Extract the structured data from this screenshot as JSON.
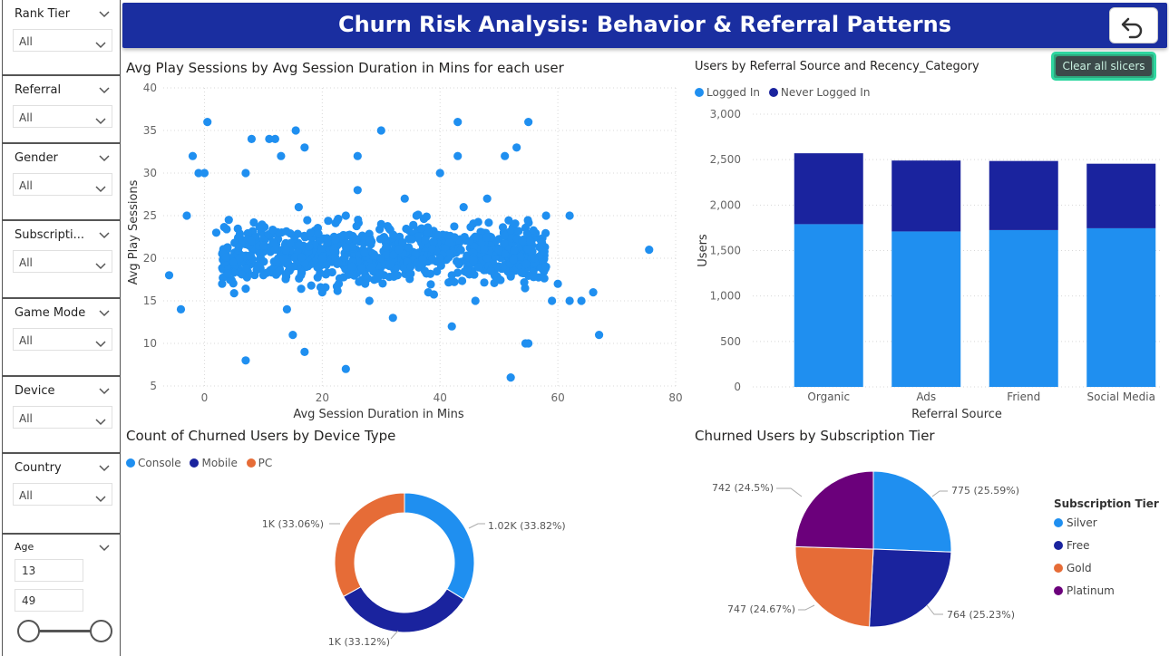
{
  "header": {
    "title": "Churn Risk Analysis: Behavior & Referral Patterns",
    "back_icon": "undo-arrow-icon"
  },
  "clear_slicers_label": "Clear all slicers",
  "slicers": [
    {
      "title": "Rank Tier",
      "value": "All"
    },
    {
      "title": "Referral",
      "value": "All"
    },
    {
      "title": "Gender",
      "value": "All"
    },
    {
      "title": "Subscripti...",
      "value": "All"
    },
    {
      "title": "Game Mode",
      "value": "All"
    },
    {
      "title": "Device",
      "value": "All"
    },
    {
      "title": "Country",
      "value": "All"
    }
  ],
  "age_slicer": {
    "title": "Age",
    "min_value": "13",
    "max_value": "49"
  },
  "colors": {
    "light_blue": "#1f8ff0",
    "dark_blue": "#1a239e",
    "orange": "#e66c37",
    "purple": "#6b007b",
    "header": "#1a2ea0"
  },
  "scatter": {
    "title": "Avg Play Sessions by Avg Session Duration in Mins for each user",
    "xlabel": "Avg Session Duration in Mins",
    "ylabel": "Avg Play Sessions",
    "x_ticks": [
      "0",
      "20",
      "40",
      "60",
      "80"
    ],
    "y_ticks": [
      "5",
      "10",
      "15",
      "20",
      "25",
      "30",
      "35",
      "40"
    ]
  },
  "bar": {
    "title": "Users by Referral Source and Recency_Category",
    "xlabel": "Referral Source",
    "ylabel": "Users",
    "legend": [
      "Logged In",
      "Never Logged In"
    ],
    "y_ticks": [
      "0",
      "500",
      "1,000",
      "1,500",
      "2,000",
      "2,500",
      "3,000"
    ]
  },
  "donut": {
    "title": "Count of Churned Users by Device Type",
    "legend": [
      "Console",
      "Mobile",
      "PC"
    ],
    "labels": [
      "1.02K (33.82%)",
      "1K (33.12%)",
      "1K (33.06%)"
    ]
  },
  "pie": {
    "title": "Churned Users by Subscription Tier",
    "legend_title": "Subscription Tier",
    "legend": [
      "Silver",
      "Free",
      "Gold",
      "Platinum"
    ],
    "labels": [
      "775 (25.59%)",
      "764 (25.23%)",
      "747 (24.67%)",
      "742 (24.5%)"
    ]
  },
  "chart_data": [
    {
      "type": "scatter",
      "title": "Avg Play Sessions by Avg Session Duration in Mins for each user",
      "xlabel": "Avg Session Duration in Mins",
      "ylabel": "Avg Play Sessions",
      "xlim": [
        -7,
        80
      ],
      "ylim": [
        5,
        40
      ],
      "grid": true,
      "series": [
        {
          "points": [
            [
              0.5,
              36
            ],
            [
              43,
              36
            ],
            [
              55,
              36
            ],
            [
              15.5,
              35
            ],
            [
              30,
              35
            ],
            [
              8,
              34
            ],
            [
              11,
              34
            ],
            [
              12,
              34
            ],
            [
              17,
              33
            ],
            [
              53,
              33
            ],
            [
              -2,
              32
            ],
            [
              13,
              32
            ],
            [
              26,
              32
            ],
            [
              43,
              32
            ],
            [
              51,
              32
            ],
            [
              -1,
              30
            ],
            [
              0,
              30
            ],
            [
              7,
              30
            ],
            [
              40,
              30
            ],
            [
              58,
              25
            ],
            [
              62,
              25
            ],
            [
              75.5,
              21
            ],
            [
              -6,
              18
            ],
            [
              -4,
              14
            ],
            [
              -3,
              25
            ],
            [
              59,
              15
            ],
            [
              62,
              15
            ],
            [
              64,
              15
            ],
            [
              66,
              16
            ],
            [
              67,
              11
            ],
            [
              7,
              8
            ],
            [
              24,
              7
            ],
            [
              52,
              6
            ],
            [
              54.5,
              10
            ],
            [
              55,
              10
            ],
            [
              17,
              9
            ],
            [
              15,
              11
            ],
            [
              3,
              17
            ],
            [
              2,
              23
            ],
            [
              58,
              19
            ],
            [
              60,
              17
            ],
            [
              20,
              20
            ],
            [
              22,
              21
            ],
            [
              25,
              19
            ],
            [
              28,
              22
            ],
            [
              30,
              20
            ],
            [
              33,
              21
            ],
            [
              35,
              19
            ],
            [
              38,
              23
            ],
            [
              40,
              20
            ],
            [
              42,
              18
            ],
            [
              45,
              22
            ],
            [
              48,
              20
            ],
            [
              12,
              21
            ],
            [
              15,
              19
            ],
            [
              18,
              23
            ],
            [
              10,
              18
            ],
            [
              8,
              22
            ],
            [
              6,
              20
            ],
            [
              50,
              21
            ],
            [
              52,
              18
            ],
            [
              54,
              22
            ],
            [
              56,
              20
            ],
            [
              24,
              25
            ],
            [
              30,
              24
            ],
            [
              36,
              25
            ],
            [
              44,
              26
            ],
            [
              20,
              16
            ],
            [
              28,
              15
            ],
            [
              38,
              16
            ],
            [
              46,
              15
            ],
            [
              14,
              14
            ],
            [
              32,
              13
            ],
            [
              42,
              12
            ],
            [
              26,
              28
            ],
            [
              34,
              27
            ],
            [
              16,
              26
            ],
            [
              48,
              27
            ]
          ]
        }
      ]
    },
    {
      "type": "bar",
      "title": "Users by Referral Source and Recency_Category",
      "xlabel": "Referral Source",
      "ylabel": "Users",
      "categories": [
        "Organic",
        "Ads",
        "Friend",
        "Social Media"
      ],
      "ylim": [
        0,
        3000
      ],
      "stacked": true,
      "legend_position": "top-left",
      "series": [
        {
          "name": "Logged In",
          "values": [
            1790,
            1710,
            1725,
            1745
          ]
        },
        {
          "name": "Never Logged In",
          "values": [
            780,
            780,
            760,
            710
          ]
        }
      ]
    },
    {
      "type": "pie",
      "title": "Count of Churned Users by Device Type",
      "donut": true,
      "categories": [
        "Console",
        "Mobile",
        "PC"
      ],
      "values": [
        33.82,
        33.12,
        33.06
      ]
    },
    {
      "type": "pie",
      "title": "Churned Users by Subscription Tier",
      "categories": [
        "Silver",
        "Free",
        "Gold",
        "Platinum"
      ],
      "values": [
        775,
        764,
        747,
        742
      ]
    }
  ]
}
